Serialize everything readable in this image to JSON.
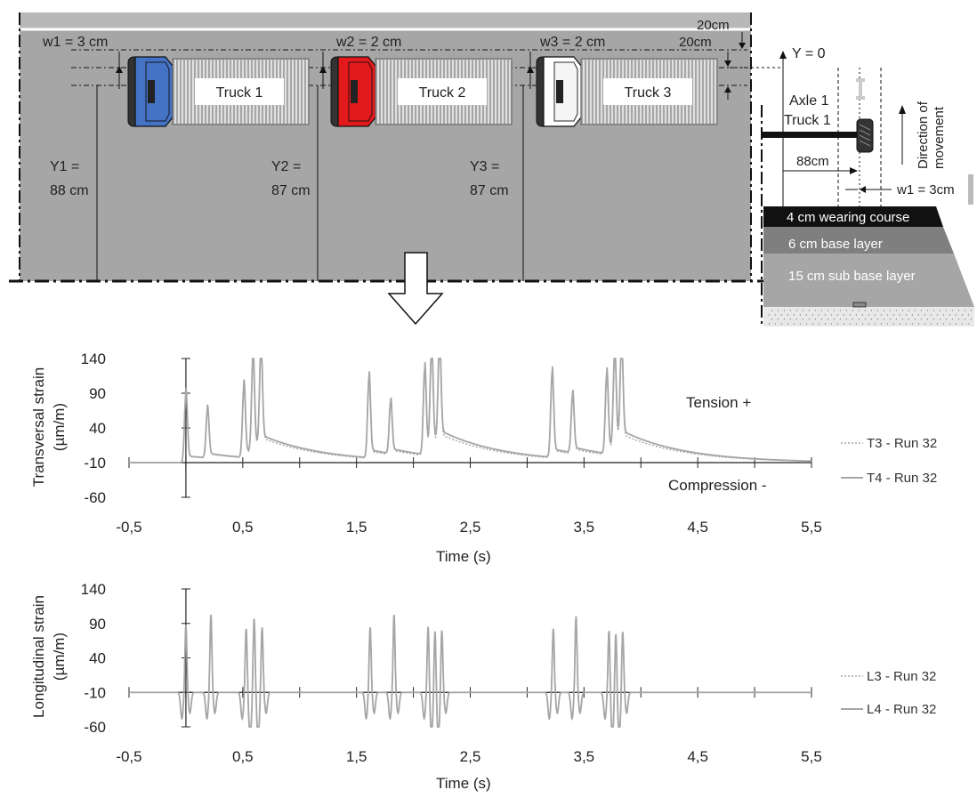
{
  "diagram": {
    "trucks": [
      {
        "label": "Truck 1",
        "color": "#4472c4",
        "offset_label": "w1 = 3 cm",
        "y_label_1": "Y1 =",
        "y_label_2": "88 cm"
      },
      {
        "label": "Truck 2",
        "color": "#e31a1c",
        "offset_label": "w2 = 2 cm",
        "y_label_1": "Y2 =",
        "y_label_2": "87 cm"
      },
      {
        "label": "Truck 3",
        "color": "#ffffff",
        "offset_label": "w3 = 2 cm",
        "y_label_1": "Y3 =",
        "y_label_2": "87 cm"
      }
    ],
    "dim_top": "20cm",
    "dim_second": "20cm",
    "y_zero": "Y = 0",
    "axle_label": "Axle 1",
    "truck_label": "Truck 1",
    "direction_label_1": "Direction of",
    "direction_label_2": "movement",
    "distance_label": "88cm",
    "offset_label": "w1 = 3cm",
    "layers": [
      "4 cm wearing course",
      "6 cm base layer",
      "15 cm sub base layer"
    ]
  },
  "chart_data": [
    {
      "type": "line",
      "ylabel": "Transversal strain (µm/m)",
      "ylabel_line1": "Transversal strain",
      "ylabel_line2": "(µm/m)",
      "xlabel": "Time (s)",
      "xlim": [
        -0.5,
        5.5
      ],
      "ylim": [
        -60,
        140
      ],
      "x_ticks": [
        "-0,5",
        "0,5",
        "1,5",
        "2,5",
        "3,5",
        "4,5",
        "5,5"
      ],
      "y_ticks": [
        "140",
        "90",
        "40",
        "-10",
        "-60"
      ],
      "annotations": [
        "Tension +",
        "Compression -"
      ],
      "series": [
        {
          "name": "T3 - Run 32",
          "style": "dotted",
          "color": "#a6a6a6",
          "peaks": [
            [
              0.0,
              88
            ],
            [
              0.19,
              59
            ],
            [
              0.51,
              85
            ],
            [
              0.59,
              120
            ],
            [
              0.66,
              122
            ],
            [
              1.61,
              96
            ],
            [
              1.8,
              60
            ],
            [
              2.1,
              106
            ],
            [
              2.16,
              126
            ],
            [
              2.23,
              122
            ],
            [
              3.22,
              103
            ],
            [
              3.4,
              68
            ],
            [
              3.7,
              98
            ],
            [
              3.77,
              120
            ],
            [
              3.83,
              120
            ]
          ]
        },
        {
          "name": "T4 - Run 32",
          "style": "solid",
          "color": "#a6a6a6",
          "peaks": [
            [
              0.0,
              88
            ],
            [
              0.19,
              60
            ],
            [
              0.51,
              92
            ],
            [
              0.59,
              128
            ],
            [
              0.66,
              129
            ],
            [
              1.61,
              105
            ],
            [
              1.8,
              65
            ],
            [
              2.1,
              113
            ],
            [
              2.16,
              136
            ],
            [
              2.23,
              132
            ],
            [
              3.22,
              111
            ],
            [
              3.4,
              74
            ],
            [
              3.7,
              105
            ],
            [
              3.77,
              129
            ],
            [
              3.83,
              129
            ]
          ]
        }
      ]
    },
    {
      "type": "line",
      "ylabel": "Longitudinal strain (µm/m)",
      "ylabel_line1": "Longitudinal strain",
      "ylabel_line2": "(µm/m)",
      "xlabel": "Time (s)",
      "xlim": [
        -0.5,
        5.5
      ],
      "ylim": [
        -60,
        140
      ],
      "x_ticks": [
        "-0,5",
        "0,5",
        "1,5",
        "2,5",
        "3,5",
        "4,5",
        "5,5"
      ],
      "y_ticks": [
        "140",
        "90",
        "40",
        "-10",
        "-60"
      ],
      "series": [
        {
          "name": "L3 - Run 32",
          "style": "dotted",
          "color": "#a6a6a6",
          "peaks": [
            [
              0.0,
              85
            ],
            [
              0.22,
              100
            ],
            [
              0.53,
              80
            ],
            [
              0.6,
              95
            ],
            [
              0.67,
              82
            ],
            [
              1.62,
              82
            ],
            [
              1.83,
              100
            ],
            [
              2.13,
              86
            ],
            [
              2.19,
              82
            ],
            [
              2.25,
              80
            ],
            [
              3.23,
              80
            ],
            [
              3.43,
              98
            ],
            [
              3.72,
              80
            ],
            [
              3.78,
              78
            ],
            [
              3.84,
              78
            ]
          ]
        },
        {
          "name": "L4 - Run 32",
          "style": "solid",
          "color": "#a6a6a6",
          "peaks": [
            [
              0.0,
              88
            ],
            [
              0.22,
              103
            ],
            [
              0.53,
              83
            ],
            [
              0.6,
              98
            ],
            [
              0.67,
              85
            ],
            [
              1.62,
              85
            ],
            [
              1.83,
              103
            ],
            [
              2.13,
              89
            ],
            [
              2.19,
              85
            ],
            [
              2.25,
              83
            ],
            [
              3.23,
              83
            ],
            [
              3.43,
              101
            ],
            [
              3.72,
              83
            ],
            [
              3.78,
              81
            ],
            [
              3.84,
              81
            ]
          ]
        }
      ]
    }
  ]
}
